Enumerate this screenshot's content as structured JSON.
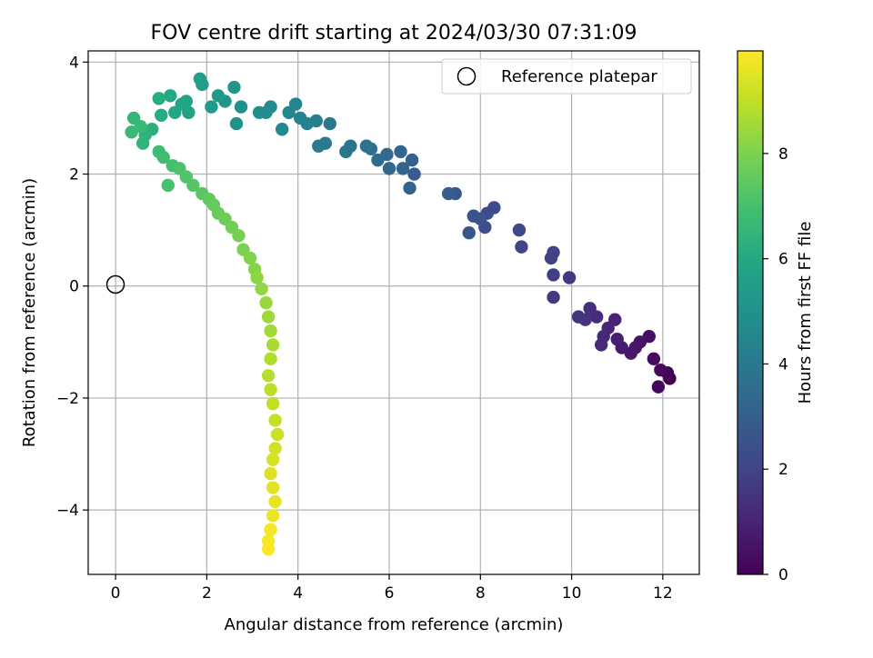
{
  "chart_data": {
    "type": "scatter",
    "title": "FOV centre drift starting at 2024/03/30 07:31:09",
    "xlabel": "Angular distance from reference (arcmin)",
    "ylabel": "Rotation from reference (arcmin)",
    "xlim": [
      -0.6,
      12.8
    ],
    "ylim": [
      -5.15,
      4.2
    ],
    "xticks": [
      0,
      2,
      4,
      6,
      8,
      10,
      12
    ],
    "xtick_labels": [
      "0",
      "2",
      "4",
      "6",
      "8",
      "10",
      "12"
    ],
    "yticks": [
      -4,
      -2,
      0,
      2,
      4
    ],
    "ytick_labels": [
      "−4",
      "−2",
      "0",
      "2",
      "4"
    ],
    "grid": true,
    "colormap": "viridis",
    "colorbar": {
      "label": "Hours from first FF file",
      "range": [
        0,
        9.95
      ],
      "ticks": [
        0,
        2,
        4,
        6,
        8
      ],
      "tick_labels": [
        "0",
        "2",
        "4",
        "6",
        "8"
      ]
    },
    "legend": {
      "placement": "top-right",
      "entries": [
        {
          "label": "Reference platepar",
          "marker": "open-circle"
        }
      ]
    },
    "reference_point": {
      "x": 0,
      "y": 0
    },
    "series": [
      {
        "points": [
          [
            12.15,
            -1.65
          ],
          [
            12.1,
            -1.55
          ],
          [
            11.9,
            -1.8
          ],
          [
            11.95,
            -1.5
          ],
          [
            11.8,
            -1.3
          ],
          [
            11.7,
            -0.9
          ],
          [
            11.5,
            -1.0
          ],
          [
            11.4,
            -1.1
          ],
          [
            11.3,
            -1.2
          ],
          [
            11.1,
            -1.1
          ],
          [
            11.0,
            -0.95
          ],
          [
            10.95,
            -0.6
          ],
          [
            10.8,
            -0.75
          ],
          [
            10.7,
            -0.9
          ],
          [
            10.65,
            -1.05
          ],
          [
            10.55,
            -0.55
          ],
          [
            10.4,
            -0.4
          ],
          [
            10.3,
            -0.6
          ],
          [
            10.15,
            -0.55
          ],
          [
            9.95,
            0.15
          ],
          [
            9.6,
            -0.2
          ],
          [
            9.6,
            0.2
          ],
          [
            9.55,
            0.5
          ],
          [
            9.6,
            0.6
          ],
          [
            8.9,
            0.7
          ],
          [
            8.85,
            1.0
          ],
          [
            8.3,
            1.4
          ],
          [
            8.15,
            1.3
          ],
          [
            8.1,
            1.05
          ],
          [
            8.0,
            1.2
          ],
          [
            7.85,
            1.25
          ],
          [
            7.75,
            0.95
          ],
          [
            7.45,
            1.65
          ],
          [
            7.3,
            1.65
          ],
          [
            6.55,
            2.0
          ],
          [
            6.5,
            2.25
          ],
          [
            6.45,
            1.75
          ],
          [
            6.3,
            2.1
          ],
          [
            6.25,
            2.4
          ],
          [
            6.0,
            2.1
          ],
          [
            5.95,
            2.35
          ],
          [
            5.75,
            2.25
          ],
          [
            5.6,
            2.45
          ],
          [
            5.5,
            2.5
          ],
          [
            5.15,
            2.5
          ],
          [
            5.05,
            2.4
          ],
          [
            4.7,
            2.9
          ],
          [
            4.6,
            2.55
          ],
          [
            4.45,
            2.5
          ],
          [
            4.4,
            2.95
          ],
          [
            4.2,
            2.9
          ],
          [
            4.05,
            3.0
          ],
          [
            3.95,
            3.25
          ],
          [
            3.8,
            3.1
          ],
          [
            3.65,
            2.8
          ],
          [
            3.4,
            3.2
          ],
          [
            3.3,
            3.1
          ],
          [
            3.15,
            3.1
          ],
          [
            2.75,
            3.2
          ],
          [
            2.65,
            2.9
          ],
          [
            2.6,
            3.55
          ],
          [
            2.4,
            3.3
          ],
          [
            2.25,
            3.4
          ],
          [
            2.1,
            3.2
          ],
          [
            1.9,
            3.6
          ],
          [
            1.85,
            3.7
          ],
          [
            1.6,
            3.1
          ],
          [
            1.55,
            3.3
          ],
          [
            1.45,
            3.25
          ],
          [
            1.3,
            3.1
          ],
          [
            1.2,
            3.4
          ],
          [
            1.0,
            3.05
          ],
          [
            0.95,
            3.35
          ],
          [
            0.8,
            2.8
          ],
          [
            0.65,
            2.7
          ],
          [
            0.6,
            2.55
          ],
          [
            0.4,
            3.0
          ],
          [
            0.35,
            2.75
          ],
          [
            0.55,
            2.85
          ],
          [
            0.95,
            2.4
          ],
          [
            1.05,
            2.3
          ],
          [
            1.25,
            2.15
          ],
          [
            1.15,
            1.8
          ],
          [
            1.4,
            2.1
          ],
          [
            1.55,
            1.95
          ],
          [
            1.7,
            1.8
          ],
          [
            1.9,
            1.65
          ],
          [
            2.05,
            1.55
          ],
          [
            2.15,
            1.45
          ],
          [
            2.25,
            1.3
          ],
          [
            2.4,
            1.2
          ],
          [
            2.55,
            1.05
          ],
          [
            2.7,
            0.9
          ],
          [
            2.8,
            0.65
          ],
          [
            2.95,
            0.5
          ],
          [
            3.05,
            0.3
          ],
          [
            3.1,
            0.15
          ],
          [
            3.2,
            -0.05
          ],
          [
            3.3,
            -0.3
          ],
          [
            3.35,
            -0.55
          ],
          [
            3.4,
            -0.8
          ],
          [
            3.45,
            -1.05
          ],
          [
            3.4,
            -1.3
          ],
          [
            3.35,
            -1.6
          ],
          [
            3.4,
            -1.85
          ],
          [
            3.45,
            -2.1
          ],
          [
            3.5,
            -2.4
          ],
          [
            3.55,
            -2.65
          ],
          [
            3.5,
            -2.9
          ],
          [
            3.45,
            -3.1
          ],
          [
            3.4,
            -3.35
          ],
          [
            3.45,
            -3.6
          ],
          [
            3.5,
            -3.85
          ],
          [
            3.45,
            -4.1
          ],
          [
            3.4,
            -4.35
          ],
          [
            3.35,
            -4.55
          ],
          [
            3.35,
            -4.7
          ]
        ]
      }
    ]
  }
}
